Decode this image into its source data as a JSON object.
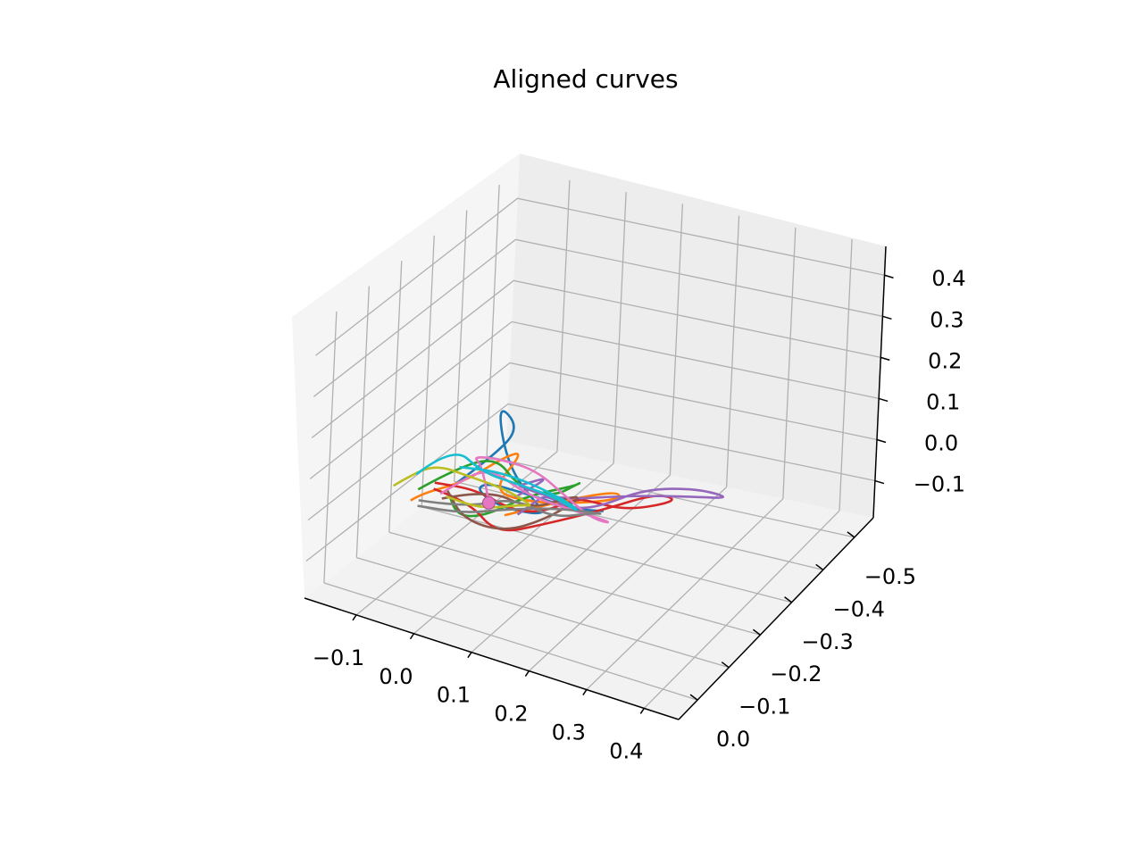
{
  "chart_data": {
    "type": "line",
    "projection": "3d",
    "title": "Aligned curves",
    "xlabel": "",
    "ylabel": "",
    "zlabel": "",
    "x_ticks": [
      "−0.1",
      "0.0",
      "0.1",
      "0.2",
      "0.3",
      "0.4"
    ],
    "y_ticks": [
      "0.0",
      "−0.1",
      "−0.2",
      "−0.3",
      "−0.4",
      "−0.5"
    ],
    "z_ticks": [
      "0.4",
      "0.3",
      "0.2",
      "0.1",
      "0.0",
      "−0.1"
    ],
    "xlim": [
      -0.19,
      0.46
    ],
    "ylim": [
      -0.56,
      0.06
    ],
    "zlim": [
      -0.19,
      0.47
    ],
    "grid": true,
    "legend": "none",
    "marker": {
      "x": 0.06,
      "y": -0.05,
      "z": 0.08,
      "color": "#e377c2"
    },
    "series": [
      {
        "color": "#1f77b4",
        "points": [
          [
            -0.03,
            -0.1,
            0.05
          ],
          [
            0.02,
            -0.14,
            0.12
          ],
          [
            0.07,
            -0.12,
            0.22
          ],
          [
            0.05,
            -0.08,
            0.3
          ],
          [
            0.09,
            -0.05,
            0.18
          ],
          [
            0.12,
            -0.1,
            0.06
          ],
          [
            0.1,
            -0.16,
            0.0
          ],
          [
            0.06,
            -0.2,
            -0.05
          ],
          [
            0.02,
            -0.16,
            -0.02
          ],
          [
            0.0,
            -0.12,
            0.04
          ],
          [
            0.04,
            -0.08,
            0.1
          ],
          [
            0.12,
            -0.06,
            0.12
          ],
          [
            0.18,
            -0.1,
            0.08
          ],
          [
            0.2,
            -0.16,
            0.04
          ]
        ]
      },
      {
        "color": "#ff7f0e",
        "points": [
          [
            -0.08,
            -0.06,
            0.02
          ],
          [
            -0.04,
            -0.02,
            0.08
          ],
          [
            0.02,
            -0.04,
            0.12
          ],
          [
            0.06,
            -0.1,
            0.16
          ],
          [
            0.1,
            -0.08,
            0.2
          ],
          [
            0.08,
            -0.02,
            0.14
          ],
          [
            0.12,
            -0.06,
            0.1
          ],
          [
            0.18,
            -0.12,
            0.08
          ],
          [
            0.24,
            -0.14,
            0.1
          ],
          [
            0.2,
            -0.2,
            0.06
          ],
          [
            0.12,
            -0.18,
            0.02
          ],
          [
            0.04,
            -0.14,
            -0.02
          ]
        ]
      },
      {
        "color": "#2ca02c",
        "points": [
          [
            -0.1,
            -0.12,
            0.0
          ],
          [
            -0.06,
            -0.16,
            0.04
          ],
          [
            0.0,
            -0.18,
            0.08
          ],
          [
            0.06,
            -0.14,
            0.06
          ],
          [
            0.1,
            -0.18,
            0.02
          ],
          [
            0.14,
            -0.2,
            0.06
          ],
          [
            0.16,
            -0.14,
            0.1
          ],
          [
            0.1,
            -0.1,
            0.08
          ],
          [
            0.04,
            -0.08,
            0.02
          ],
          [
            -0.02,
            -0.1,
            -0.02
          ],
          [
            -0.06,
            -0.14,
            0.0
          ]
        ]
      },
      {
        "color": "#d62728",
        "points": [
          [
            -0.02,
            -0.02,
            0.1
          ],
          [
            0.02,
            -0.06,
            0.06
          ],
          [
            0.08,
            -0.04,
            0.02
          ],
          [
            0.14,
            -0.08,
            0.04
          ],
          [
            0.22,
            -0.12,
            0.08
          ],
          [
            0.28,
            -0.18,
            0.1
          ],
          [
            0.3,
            -0.22,
            0.06
          ],
          [
            0.22,
            -0.2,
            0.02
          ],
          [
            0.14,
            -0.22,
            0.0
          ],
          [
            0.1,
            -0.26,
            -0.04
          ],
          [
            0.06,
            -0.22,
            -0.06
          ],
          [
            0.04,
            -0.16,
            -0.02
          ],
          [
            0.0,
            -0.12,
            0.04
          ],
          [
            -0.04,
            -0.06,
            0.08
          ]
        ]
      },
      {
        "color": "#9467bd",
        "points": [
          [
            0.02,
            -0.22,
            -0.08
          ],
          [
            0.06,
            -0.2,
            -0.02
          ],
          [
            0.1,
            -0.16,
            0.04
          ],
          [
            0.16,
            -0.12,
            0.06
          ],
          [
            0.22,
            -0.1,
            0.1
          ],
          [
            0.28,
            -0.14,
            0.14
          ],
          [
            0.34,
            -0.2,
            0.12
          ],
          [
            0.38,
            -0.24,
            0.08
          ],
          [
            0.3,
            -0.26,
            0.04
          ],
          [
            0.2,
            -0.24,
            0.02
          ],
          [
            0.1,
            -0.2,
            0.0
          ],
          [
            0.06,
            -0.14,
            0.06
          ],
          [
            0.1,
            -0.08,
            0.12
          ],
          [
            0.16,
            -0.06,
            0.18
          ],
          [
            0.12,
            -0.02,
            0.14
          ]
        ]
      },
      {
        "color": "#8c564b",
        "points": [
          [
            -0.08,
            -0.16,
            -0.04
          ],
          [
            -0.02,
            -0.2,
            -0.02
          ],
          [
            0.04,
            -0.22,
            -0.06
          ],
          [
            0.1,
            -0.24,
            -0.02
          ],
          [
            0.14,
            -0.2,
            0.02
          ],
          [
            0.1,
            -0.16,
            -0.02
          ],
          [
            0.04,
            -0.14,
            -0.06
          ],
          [
            -0.02,
            -0.12,
            -0.04
          ],
          [
            -0.06,
            -0.14,
            0.0
          ]
        ]
      },
      {
        "color": "#e377c2",
        "points": [
          [
            0.06,
            -0.05,
            0.08
          ],
          [
            0.02,
            -0.1,
            0.12
          ],
          [
            -0.02,
            -0.14,
            0.1
          ],
          [
            0.0,
            -0.2,
            0.06
          ],
          [
            0.04,
            -0.24,
            0.02
          ],
          [
            0.08,
            -0.26,
            -0.04
          ],
          [
            0.14,
            -0.24,
            -0.06
          ],
          [
            0.2,
            -0.2,
            -0.02
          ],
          [
            0.16,
            -0.14,
            0.04
          ],
          [
            0.1,
            -0.1,
            0.08
          ],
          [
            0.04,
            -0.08,
            0.14
          ],
          [
            0.0,
            -0.04,
            0.1
          ],
          [
            -0.04,
            -0.08,
            0.04
          ]
        ]
      },
      {
        "color": "#7f7f7f",
        "points": [
          [
            -0.12,
            -0.16,
            -0.06
          ],
          [
            -0.06,
            -0.2,
            -0.08
          ],
          [
            0.0,
            -0.24,
            -0.06
          ],
          [
            0.06,
            -0.26,
            -0.1
          ],
          [
            0.12,
            -0.28,
            -0.08
          ],
          [
            0.16,
            -0.24,
            -0.04
          ],
          [
            0.1,
            -0.2,
            -0.02
          ],
          [
            0.02,
            -0.18,
            -0.04
          ],
          [
            -0.04,
            -0.16,
            -0.06
          ],
          [
            -0.1,
            -0.12,
            -0.04
          ]
        ]
      },
      {
        "color": "#bcbd22",
        "points": [
          [
            -0.1,
            -0.04,
            0.06
          ],
          [
            -0.06,
            0.0,
            0.12
          ],
          [
            -0.02,
            -0.02,
            0.16
          ],
          [
            0.02,
            -0.06,
            0.12
          ],
          [
            0.06,
            -0.1,
            0.08
          ],
          [
            0.1,
            -0.12,
            0.04
          ],
          [
            0.06,
            -0.16,
            0.0
          ],
          [
            0.0,
            -0.14,
            -0.02
          ],
          [
            -0.04,
            -0.1,
            0.02
          ]
        ]
      },
      {
        "color": "#17becf",
        "points": [
          [
            -0.04,
            0.0,
            0.14
          ],
          [
            0.0,
            -0.04,
            0.2
          ],
          [
            0.04,
            -0.06,
            0.14
          ],
          [
            0.08,
            -0.1,
            0.1
          ],
          [
            0.12,
            -0.14,
            0.06
          ],
          [
            0.16,
            -0.16,
            0.02
          ],
          [
            0.12,
            -0.2,
            0.0
          ],
          [
            0.06,
            -0.18,
            0.04
          ],
          [
            0.02,
            -0.14,
            0.08
          ],
          [
            -0.02,
            -0.1,
            0.1
          ]
        ]
      }
    ]
  }
}
